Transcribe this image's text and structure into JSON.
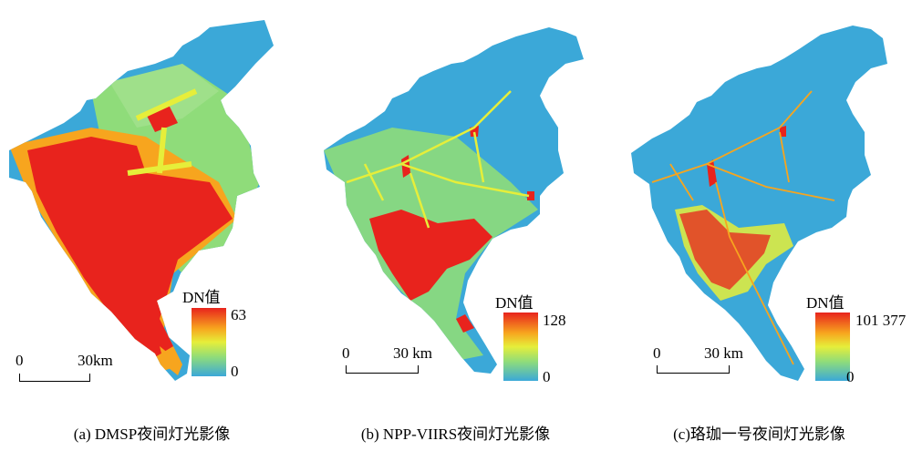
{
  "panels": [
    {
      "id": "a",
      "legend_title": "DN值",
      "legend_max": "63",
      "legend_min": "0",
      "scale_zero": "0",
      "scale_label": "30km",
      "caption": "(a) DMSP夜间灯光影像"
    },
    {
      "id": "b",
      "legend_title": "DN值",
      "legend_max": "128",
      "legend_min": "0",
      "scale_zero": "0",
      "scale_label": "30 km",
      "caption": "(b) NPP-VIIRS夜间灯光影像"
    },
    {
      "id": "c",
      "legend_title": "DN值",
      "legend_max": "101 377",
      "legend_min": "0",
      "scale_zero": "0",
      "scale_label": "30 km",
      "caption": "(c)珞珈一号夜间灯光影像"
    }
  ],
  "colors": {
    "high": "#e8231d",
    "mid_high": "#f7a51e",
    "mid": "#e6ee3a",
    "mid_low": "#8fdc7a",
    "low": "#3ba8d8"
  }
}
